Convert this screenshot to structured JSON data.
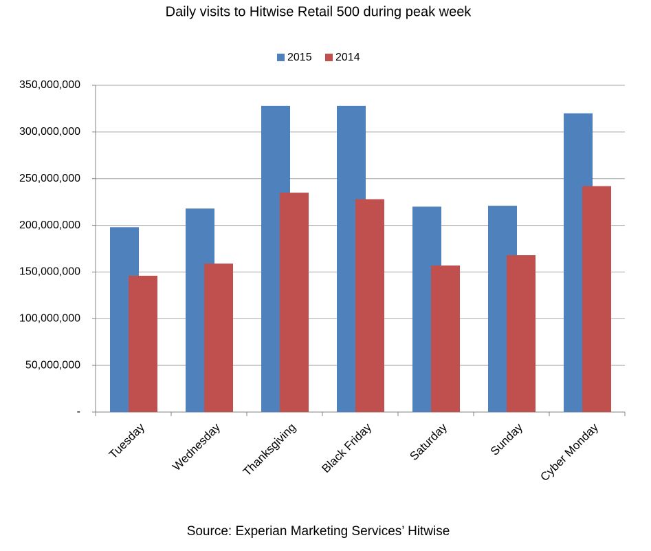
{
  "chart_data": {
    "type": "bar",
    "title": "Daily visits to Hitwise Retail 500 during peak week",
    "source": "Source: Experian Marketing Services’ Hitwise",
    "categories": [
      "Tuesday",
      "Wednesday",
      "Thanksgiving",
      "Black Friday",
      "Saturday",
      "Sunday",
      "Cyber Monday"
    ],
    "series": [
      {
        "name": "2015",
        "color": "#4f81bd",
        "values": [
          198000000,
          218000000,
          328000000,
          328000000,
          220000000,
          221000000,
          320000000
        ]
      },
      {
        "name": "2014",
        "color": "#c0504d",
        "values": [
          146000000,
          159000000,
          235000000,
          228000000,
          157000000,
          168000000,
          242000000
        ]
      }
    ],
    "ylim": [
      0,
      350000000
    ],
    "yticks": [
      {
        "value": 0,
        "label": "-"
      },
      {
        "value": 50000000,
        "label": "50,000,000"
      },
      {
        "value": 100000000,
        "label": "100,000,000"
      },
      {
        "value": 150000000,
        "label": "150,000,000"
      },
      {
        "value": 200000000,
        "label": "200,000,000"
      },
      {
        "value": 250000000,
        "label": "250,000,000"
      },
      {
        "value": 300000000,
        "label": "300,000,000"
      },
      {
        "value": 350000000,
        "label": "350,000,000"
      }
    ],
    "grid": true,
    "legend": "top"
  }
}
